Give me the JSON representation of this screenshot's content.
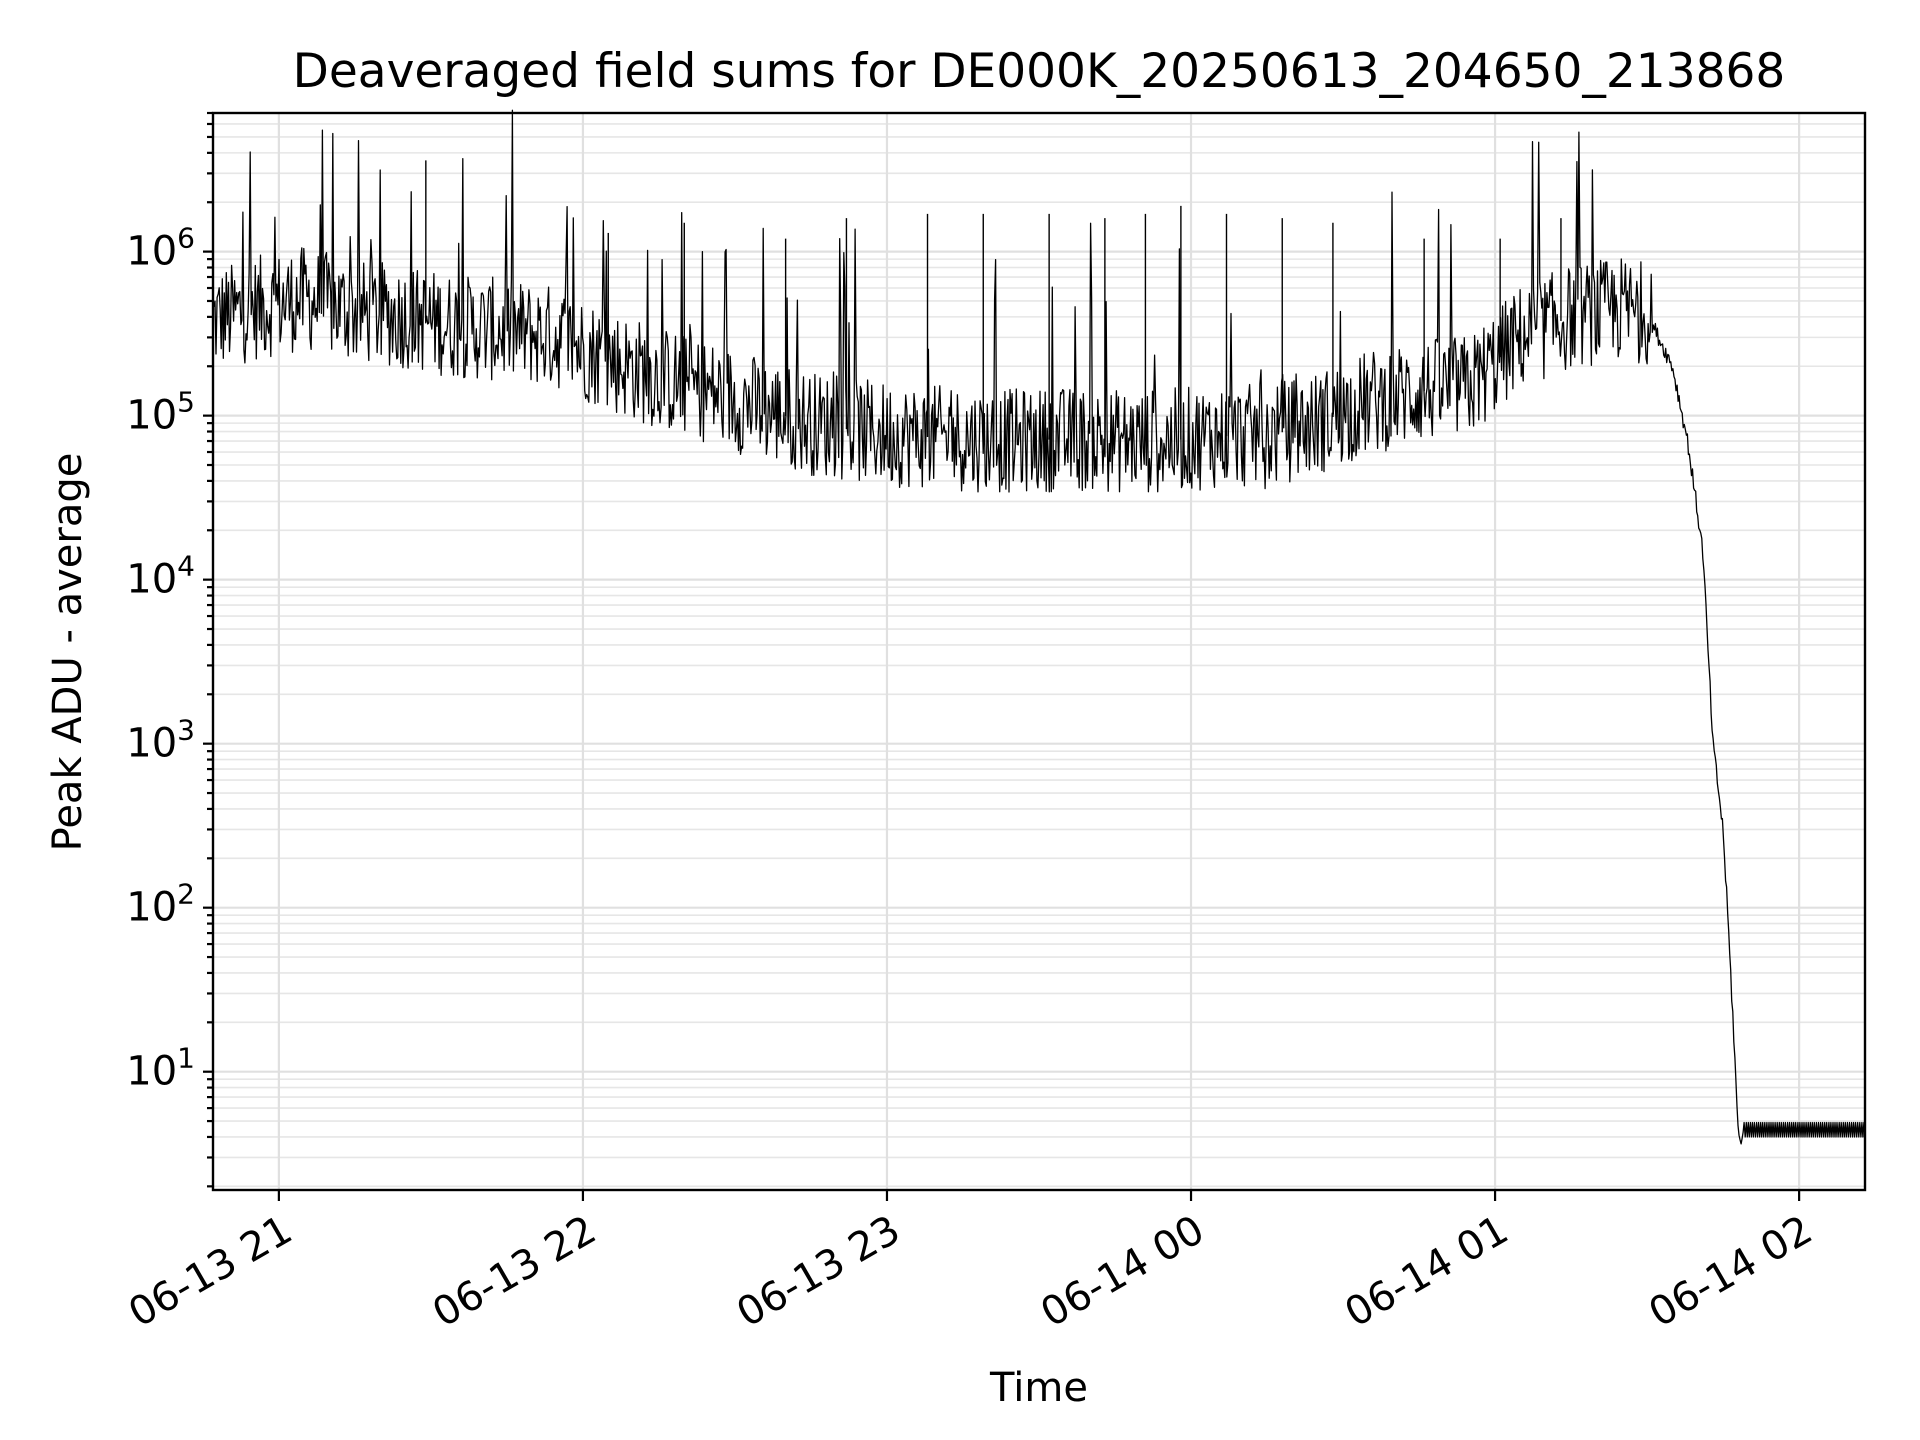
{
  "chart_data": {
    "type": "line",
    "title": "Deaveraged field sums for DE000K_20250613_204650_213868",
    "xlabel": "Time",
    "ylabel": "Peak ADU - average",
    "yscale": "log",
    "grid": true,
    "grid_minor": true,
    "xlim": [
      "2025-06-13 20:47",
      "2025-06-14 02:13"
    ],
    "ylim": [
      1.9,
      7000000
    ],
    "x_ticks": [
      {
        "value": "2025-06-13 21:00",
        "label": "06-13 21"
      },
      {
        "value": "2025-06-13 22:00",
        "label": "06-13 22"
      },
      {
        "value": "2025-06-13 23:00",
        "label": "06-13 23"
      },
      {
        "value": "2025-06-14 00:00",
        "label": "06-14 00"
      },
      {
        "value": "2025-06-14 01:00",
        "label": "06-14 01"
      },
      {
        "value": "2025-06-14 02:00",
        "label": "06-14 02"
      }
    ],
    "y_ticks": [
      {
        "value": 10,
        "base": "10",
        "exp": "1"
      },
      {
        "value": 100,
        "base": "10",
        "exp": "2"
      },
      {
        "value": 1000,
        "base": "10",
        "exp": "3"
      },
      {
        "value": 10000,
        "base": "10",
        "exp": "4"
      },
      {
        "value": 100000,
        "base": "10",
        "exp": "5"
      },
      {
        "value": 1000000,
        "base": "10",
        "exp": "6"
      }
    ],
    "series": [
      {
        "color": "#000000",
        "x": [
          "2025-06-13 20:47",
          "2025-06-13 20:55",
          "2025-06-13 21:05",
          "2025-06-13 21:15",
          "2025-06-13 21:25",
          "2025-06-13 21:35",
          "2025-06-13 21:45",
          "2025-06-13 21:55",
          "2025-06-13 22:05",
          "2025-06-13 22:15",
          "2025-06-13 22:25",
          "2025-06-13 22:35",
          "2025-06-13 22:45",
          "2025-06-13 22:55",
          "2025-06-13 23:05",
          "2025-06-13 23:15",
          "2025-06-13 23:25",
          "2025-06-13 23:35",
          "2025-06-13 23:45",
          "2025-06-13 23:55",
          "2025-06-14 00:05",
          "2025-06-14 00:15",
          "2025-06-14 00:25",
          "2025-06-14 00:35",
          "2025-06-14 00:45",
          "2025-06-14 00:55",
          "2025-06-14 01:05",
          "2025-06-14 01:15",
          "2025-06-14 01:25",
          "2025-06-14 01:30",
          "2025-06-14 01:35",
          "2025-06-14 01:38",
          "2025-06-14 01:41",
          "2025-06-14 01:43",
          "2025-06-14 01:45",
          "2025-06-14 01:46",
          "2025-06-14 01:47",
          "2025-06-14 01:48",
          "2025-06-14 01:48:30",
          "2025-06-14 01:50",
          "2025-06-14 02:00",
          "2025-06-14 02:13"
        ],
        "y": [
          380000,
          450000,
          520000,
          430000,
          400000,
          350000,
          330000,
          300000,
          220000,
          170000,
          140000,
          110000,
          90000,
          80000,
          75000,
          72000,
          70000,
          72000,
          70000,
          70000,
          75000,
          75000,
          90000,
          120000,
          140000,
          150000,
          300000,
          400000,
          450000,
          420000,
          200000,
          70000,
          15000,
          1000,
          300,
          80,
          20,
          4,
          4,
          4,
          4,
          4
        ]
      }
    ],
    "spikes": {
      "x": [
        "2025-06-13 21:29",
        "2025-06-13 22:05",
        "2025-06-13 22:20",
        "2025-06-13 22:40",
        "2025-06-13 22:52",
        "2025-06-13 23:08",
        "2025-06-13 23:19",
        "2025-06-13 23:32",
        "2025-06-13 23:43",
        "2025-06-13 23:51",
        "2025-06-13 23:58",
        "2025-06-14 00:07",
        "2025-06-14 00:18",
        "2025-06-14 00:28",
        "2025-06-14 00:46",
        "2025-06-14 01:01",
        "2025-06-14 01:13"
      ],
      "y": [
        3600000,
        1300000,
        1500000,
        1200000,
        1600000,
        1700000,
        1700000,
        1700000,
        1600000,
        1700000,
        1900000,
        1700000,
        1600000,
        1500000,
        1200000,
        1200000,
        1600000
      ]
    }
  }
}
